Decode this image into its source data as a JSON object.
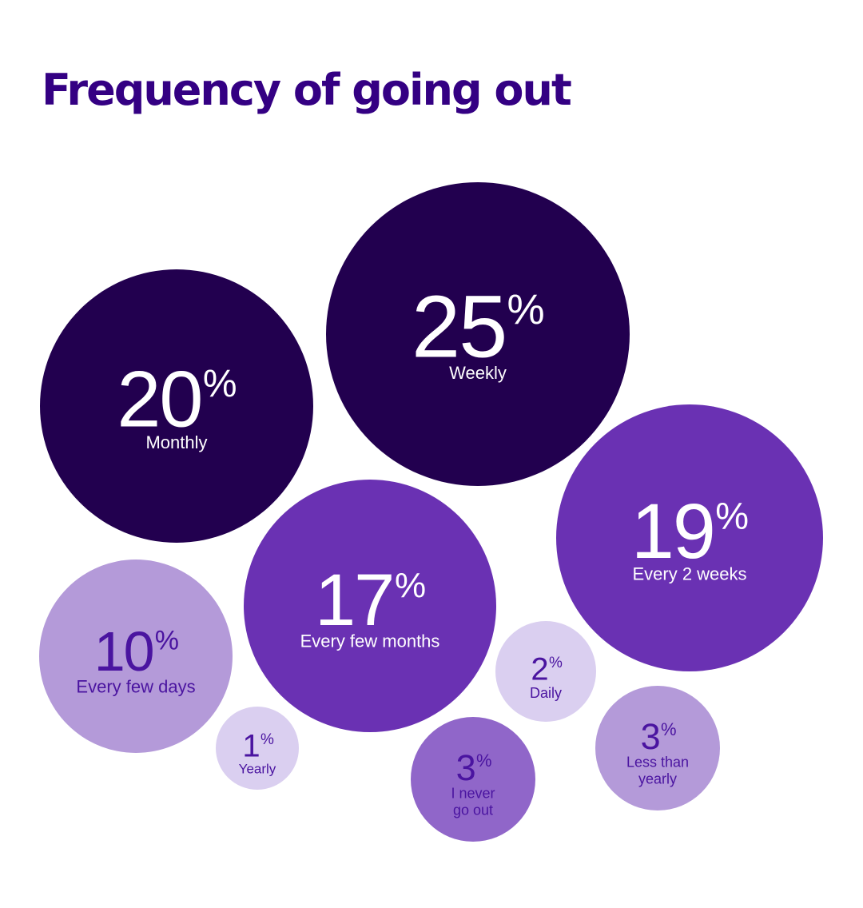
{
  "title": "Frequency of going out",
  "colors": {
    "title": "#340083",
    "darkest": "#22004f",
    "dark": "#6a31b3",
    "medium": "#9066c9",
    "light": "#b49ad9",
    "lightest": "#dacff0",
    "text_on_dark": "#ffffff",
    "text_on_light": "#4a14a0"
  },
  "chart_data": {
    "type": "bubble",
    "title": "Frequency of going out",
    "unit": "%",
    "items": [
      {
        "label": "Weekly",
        "value": 25,
        "color": "darkest"
      },
      {
        "label": "Monthly",
        "value": 20,
        "color": "darkest"
      },
      {
        "label": "Every 2 weeks",
        "value": 19,
        "color": "dark"
      },
      {
        "label": "Every few months",
        "value": 17,
        "color": "dark"
      },
      {
        "label": "Every few days",
        "value": 10,
        "color": "light"
      },
      {
        "label": "I never go out",
        "value": 3,
        "color": "medium"
      },
      {
        "label": "Less than yearly",
        "value": 3,
        "color": "light"
      },
      {
        "label": "Daily",
        "value": 2,
        "color": "lightest"
      },
      {
        "label": "Yearly",
        "value": 1,
        "color": "lightest"
      }
    ]
  }
}
